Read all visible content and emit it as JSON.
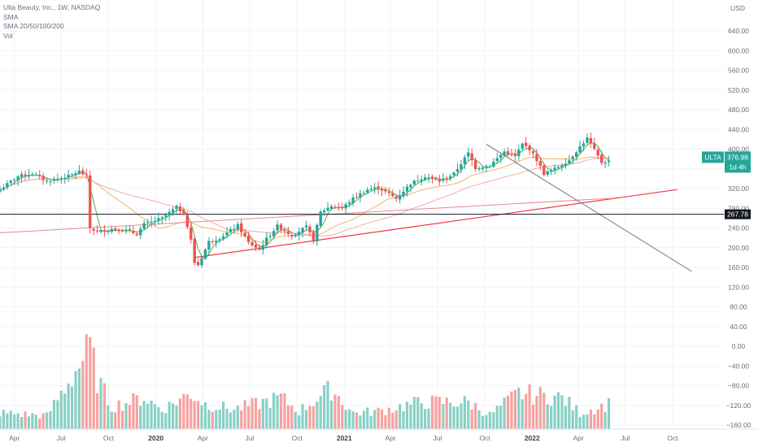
{
  "legend": {
    "title": "Ulta Beauty, Inc., 1W, NASDAQ",
    "ma_label": "SMA",
    "sma_label": "SMA 20/50/100/200",
    "vol_label": "Vol"
  },
  "price_axis": {
    "currency": "USD",
    "ticks": [
      "640.00",
      "600.00",
      "560.00",
      "520.00",
      "480.00",
      "440.00",
      "400.00",
      "360.00",
      "320.00",
      "280.00",
      "240.00",
      "200.00",
      "160.00",
      "120.00",
      "80.00",
      "40.00",
      "0.00",
      "−40.00",
      "−80.00",
      "−120.00",
      "−160.00"
    ]
  },
  "time_axis": {
    "labels": [
      {
        "text": "Apr",
        "bold": false
      },
      {
        "text": "Jul",
        "bold": false
      },
      {
        "text": "Oct",
        "bold": false
      },
      {
        "text": "2020",
        "bold": true
      },
      {
        "text": "Apr",
        "bold": false
      },
      {
        "text": "Jul",
        "bold": false
      },
      {
        "text": "Oct",
        "bold": false
      },
      {
        "text": "2021",
        "bold": true
      },
      {
        "text": "Apr",
        "bold": false
      },
      {
        "text": "Jul",
        "bold": false
      },
      {
        "text": "Oct",
        "bold": false
      },
      {
        "text": "2022",
        "bold": true
      },
      {
        "text": "Apr",
        "bold": false
      },
      {
        "text": "Jul",
        "bold": false
      },
      {
        "text": "Oct",
        "bold": false
      }
    ]
  },
  "last_price": {
    "ticker": "ULTA",
    "price": "376.98",
    "countdown": "1d 4h",
    "color": "#26a69a"
  },
  "horizontal_line": {
    "value": 267.78,
    "label": "267.78",
    "color": "#131722"
  },
  "colors": {
    "up": "#26a69a",
    "down": "#ef5350",
    "vol_up": "#89d0c6",
    "vol_down": "#f7a2a0",
    "sma20": "#4caf50",
    "sma50": "#f6b26b",
    "sma100": "#f4a9a8",
    "sma_extra": "#e88b8b",
    "trend_support": "#f23645",
    "trend_resistance": "#8a8d96"
  },
  "chart_data": {
    "type": "candlestick",
    "title": "Ulta Beauty, Inc., 1W, NASDAQ",
    "ylabel": "USD",
    "ylim": [
      -175,
      675
    ],
    "x_start": "2019-03-04",
    "x_end": "2022-10-31",
    "interval": "1W",
    "price_waypoints": [
      [
        "2019-03-04",
        318
      ],
      [
        "2019-04-08",
        345
      ],
      [
        "2019-05-06",
        350
      ],
      [
        "2019-06-03",
        335
      ],
      [
        "2019-06-24",
        340
      ],
      [
        "2019-07-15",
        345
      ],
      [
        "2019-08-05",
        355
      ],
      [
        "2019-08-19",
        345
      ],
      [
        "2019-08-26",
        240
      ],
      [
        "2019-09-09",
        232
      ],
      [
        "2019-10-07",
        238
      ],
      [
        "2019-11-04",
        235
      ],
      [
        "2019-11-25",
        228
      ],
      [
        "2019-12-09",
        247
      ],
      [
        "2020-01-13",
        260
      ],
      [
        "2020-02-10",
        282
      ],
      [
        "2020-02-24",
        270
      ],
      [
        "2020-03-09",
        215
      ],
      [
        "2020-03-16",
        170
      ],
      [
        "2020-03-23",
        165
      ],
      [
        "2020-04-13",
        212
      ],
      [
        "2020-05-04",
        220
      ],
      [
        "2020-06-08",
        245
      ],
      [
        "2020-06-29",
        210
      ],
      [
        "2020-07-20",
        196
      ],
      [
        "2020-08-03",
        218
      ],
      [
        "2020-08-24",
        244
      ],
      [
        "2020-09-21",
        225
      ],
      [
        "2020-10-19",
        242
      ],
      [
        "2020-11-02",
        215
      ],
      [
        "2020-11-16",
        272
      ],
      [
        "2020-12-07",
        285
      ],
      [
        "2020-12-28",
        280
      ],
      [
        "2021-01-18",
        300
      ],
      [
        "2021-02-15",
        318
      ],
      [
        "2021-03-08",
        322
      ],
      [
        "2021-04-12",
        300
      ],
      [
        "2021-05-10",
        330
      ],
      [
        "2021-06-07",
        345
      ],
      [
        "2021-07-05",
        335
      ],
      [
        "2021-08-02",
        350
      ],
      [
        "2021-08-30",
        392
      ],
      [
        "2021-09-13",
        362
      ],
      [
        "2021-10-11",
        367
      ],
      [
        "2021-11-08",
        395
      ],
      [
        "2021-11-29",
        385
      ],
      [
        "2021-12-13",
        410
      ],
      [
        "2021-12-27",
        400
      ],
      [
        "2022-01-10",
        378
      ],
      [
        "2022-01-24",
        350
      ],
      [
        "2022-02-14",
        360
      ],
      [
        "2022-03-14",
        378
      ],
      [
        "2022-04-04",
        405
      ],
      [
        "2022-04-18",
        422
      ],
      [
        "2022-05-02",
        398
      ],
      [
        "2022-05-16",
        373
      ],
      [
        "2022-05-30",
        376.98
      ]
    ],
    "volume_note": "Volume histogram shown without a separate scale; spikes near Sep 2019, Mar 2020, Dec 2020, Sep 2021 and May 2022.",
    "volume_waypoints": [
      [
        "2019-03-04",
        0.18
      ],
      [
        "2019-06-03",
        0.15
      ],
      [
        "2019-08-26",
        0.9
      ],
      [
        "2019-09-09",
        0.55
      ],
      [
        "2019-10-07",
        0.25
      ],
      [
        "2019-12-09",
        0.35
      ],
      [
        "2020-01-13",
        0.22
      ],
      [
        "2020-03-09",
        0.4
      ],
      [
        "2020-04-06",
        0.28
      ],
      [
        "2020-06-01",
        0.22
      ],
      [
        "2020-08-31",
        0.35
      ],
      [
        "2020-10-05",
        0.2
      ],
      [
        "2020-12-07",
        0.45
      ],
      [
        "2021-01-18",
        0.18
      ],
      [
        "2021-03-08",
        0.2
      ],
      [
        "2021-05-31",
        0.3
      ],
      [
        "2021-08-30",
        0.3
      ],
      [
        "2021-10-11",
        0.16
      ],
      [
        "2021-12-06",
        0.4
      ],
      [
        "2022-02-28",
        0.35
      ],
      [
        "2022-04-04",
        0.18
      ],
      [
        "2022-05-30",
        0.28
      ]
    ],
    "overlays": [
      {
        "name": "SMA 20",
        "color": "#4caf50"
      },
      {
        "name": "SMA 50",
        "color": "#f6b26b"
      },
      {
        "name": "SMA 100",
        "color": "#f4a9a8"
      },
      {
        "name": "SMA 200",
        "color": "#e88b8b"
      }
    ],
    "trendlines": [
      {
        "from": [
          "2020-03-16",
          180
        ],
        "to": [
          "2022-10-10",
          318
        ],
        "color": "#f23645"
      },
      {
        "from": [
          "2021-10-04",
          410
        ],
        "to": [
          "2022-11-07",
          152
        ],
        "color": "#8a8d96"
      }
    ]
  }
}
